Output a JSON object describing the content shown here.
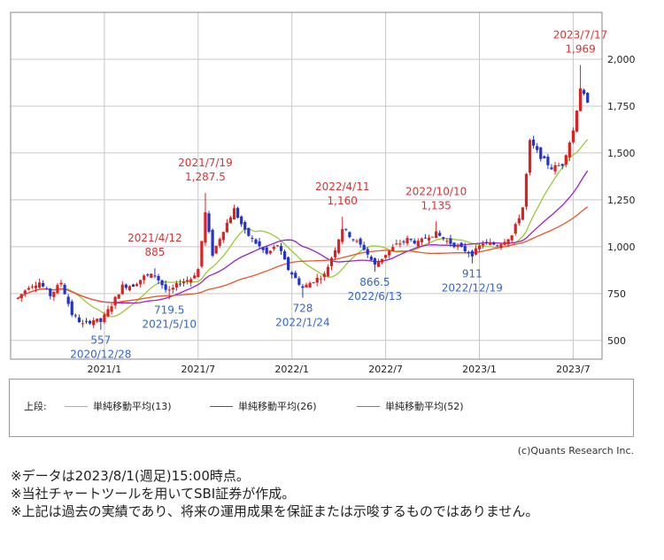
{
  "chart_data": {
    "type": "candlestick",
    "ylim": [
      400,
      2250
    ],
    "yticks": [
      500,
      750,
      1000,
      1250,
      1500,
      1750,
      2000
    ],
    "ytick_labels": [
      "500",
      "750",
      "1,000",
      "1,250",
      "1,500",
      "1,750",
      "2,000"
    ],
    "x_start": "2020-07-06",
    "x_end": "2023-08-28",
    "xticks": [
      {
        "date": "2021-01-04",
        "label": "2021/1"
      },
      {
        "date": "2021-07-05",
        "label": "2021/7"
      },
      {
        "date": "2022-01-03",
        "label": "2022/1"
      },
      {
        "date": "2022-07-04",
        "label": "2022/7"
      },
      {
        "date": "2023-01-02",
        "label": "2023/1"
      },
      {
        "date": "2023-07-03",
        "label": "2023/7"
      }
    ],
    "close_anchors": [
      [
        "2020-07-20",
        725
      ],
      [
        "2020-08-10",
        790
      ],
      [
        "2020-08-31",
        810
      ],
      [
        "2020-09-21",
        740
      ],
      [
        "2020-10-12",
        810
      ],
      [
        "2020-11-02",
        640
      ],
      [
        "2020-11-23",
        585
      ],
      [
        "2020-12-14",
        610
      ],
      [
        "2020-12-28",
        600
      ],
      [
        "2021-01-18",
        690
      ],
      [
        "2021-02-08",
        790
      ],
      [
        "2021-03-01",
        795
      ],
      [
        "2021-03-22",
        840
      ],
      [
        "2021-04-12",
        850
      ],
      [
        "2021-05-03",
        770
      ],
      [
        "2021-05-10",
        760
      ],
      [
        "2021-05-31",
        810
      ],
      [
        "2021-06-21",
        830
      ],
      [
        "2021-07-05",
        880
      ],
      [
        "2021-07-19",
        1180
      ],
      [
        "2021-08-02",
        960
      ],
      [
        "2021-08-23",
        1090
      ],
      [
        "2021-09-13",
        1200
      ],
      [
        "2021-10-04",
        1080
      ],
      [
        "2021-10-25",
        1020
      ],
      [
        "2021-11-15",
        960
      ],
      [
        "2021-12-06",
        1010
      ],
      [
        "2021-12-27",
        880
      ],
      [
        "2022-01-24",
        780
      ],
      [
        "2022-02-14",
        820
      ],
      [
        "2022-03-07",
        850
      ],
      [
        "2022-03-28",
        990
      ],
      [
        "2022-04-11",
        1100
      ],
      [
        "2022-05-02",
        1040
      ],
      [
        "2022-05-23",
        990
      ],
      [
        "2022-06-13",
        900
      ],
      [
        "2022-07-04",
        960
      ],
      [
        "2022-07-25",
        1010
      ],
      [
        "2022-08-15",
        1040
      ],
      [
        "2022-09-05",
        1020
      ],
      [
        "2022-09-26",
        1060
      ],
      [
        "2022-10-10",
        1070
      ],
      [
        "2022-10-31",
        1030
      ],
      [
        "2022-11-21",
        1000
      ],
      [
        "2022-12-19",
        960
      ],
      [
        "2023-01-09",
        1020
      ],
      [
        "2023-02-06",
        1010
      ],
      [
        "2023-03-06",
        1060
      ],
      [
        "2023-03-27",
        1210
      ],
      [
        "2023-04-10",
        1560
      ],
      [
        "2023-05-01",
        1480
      ],
      [
        "2023-05-22",
        1420
      ],
      [
        "2023-06-12",
        1440
      ],
      [
        "2023-06-26",
        1560
      ],
      [
        "2023-07-03",
        1620
      ],
      [
        "2023-07-17",
        1850
      ],
      [
        "2023-07-31",
        1760
      ]
    ],
    "series": [
      {
        "name": "単純移動平均(13)",
        "window": 13,
        "color": "#99cc33"
      },
      {
        "name": "単純移動平均(26)",
        "window": 26,
        "color": "#9922cc"
      },
      {
        "name": "単純移動平均(52)",
        "window": 52,
        "color": "#ee5522"
      }
    ],
    "annotations": [
      {
        "date": "2020-12-28",
        "price": 557,
        "line1": "557",
        "line2": "2020/12/28",
        "kind": "low"
      },
      {
        "date": "2021-04-12",
        "price": 885,
        "line1": "2021/4/12",
        "line2": "885",
        "kind": "high"
      },
      {
        "date": "2021-05-10",
        "price": 719.5,
        "line1": "719.5",
        "line2": "2021/5/10",
        "kind": "low"
      },
      {
        "date": "2021-07-19",
        "price": 1287.5,
        "line1": "2021/7/19",
        "line2": "1,287.5",
        "kind": "high"
      },
      {
        "date": "2022-01-24",
        "price": 728,
        "line1": "728",
        "line2": "2022/1/24",
        "kind": "low"
      },
      {
        "date": "2022-04-11",
        "price": 1160,
        "line1": "2022/4/11",
        "line2": "1,160",
        "kind": "high"
      },
      {
        "date": "2022-06-13",
        "price": 866.5,
        "line1": "866.5",
        "line2": "2022/6/13",
        "kind": "low"
      },
      {
        "date": "2022-10-10",
        "price": 1135,
        "line1": "2022/10/10",
        "line2": "1,135",
        "kind": "high"
      },
      {
        "date": "2022-12-19",
        "price": 911,
        "line1": "911",
        "line2": "2022/12/19",
        "kind": "low"
      },
      {
        "date": "2023-07-17",
        "price": 1969,
        "line1": "2023/7/17",
        "line2": "1,969",
        "kind": "high"
      }
    ],
    "grid": true,
    "up_color": "#e02020",
    "down_color": "#2233cc",
    "high_label_color": "#e03030",
    "low_label_color": "#3366cc"
  },
  "legend": {
    "label": "上段:",
    "items": [
      {
        "name": "単純移動平均(13)",
        "color": "#99cc33"
      },
      {
        "name": "単純移動平均(26)",
        "color": "#9922cc"
      },
      {
        "name": "単純移動平均(52)",
        "color": "#ee5522"
      }
    ]
  },
  "credit": "(c)Quants Research Inc.",
  "notes": [
    "※データは2023/8/1(週足)15:00時点。",
    "※当社チャートツールを用いてSBI証券が作成。",
    "※上記は過去の実績であり、将来の運用成果を保証または示唆するものではありません。"
  ]
}
